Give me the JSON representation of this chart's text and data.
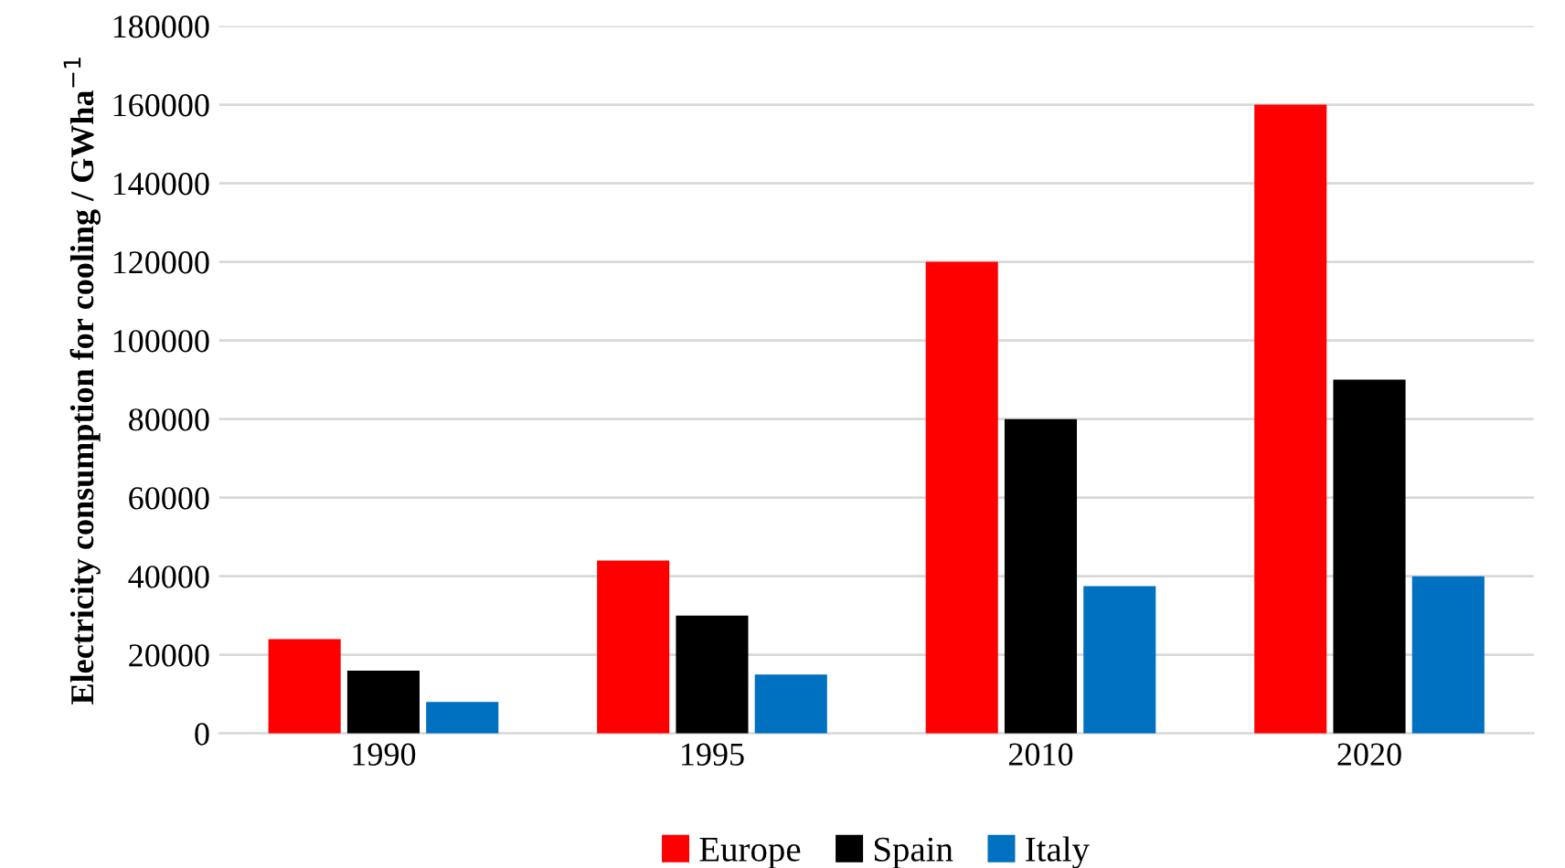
{
  "chart_data": {
    "type": "bar",
    "ylabel": "Electricity consumption for cooling / GWha$^{−1}$",
    "categories": [
      "1990",
      "1995",
      "2010",
      "2020"
    ],
    "series": [
      {
        "name": "Europe",
        "color": "#ff0000",
        "values": [
          24000,
          44000,
          120000,
          160000
        ]
      },
      {
        "name": "Spain",
        "color": "#000000",
        "values": [
          16000,
          30000,
          80000,
          90000
        ]
      },
      {
        "name": "Italy",
        "color": "#0070c0",
        "values": [
          8000,
          15000,
          37500,
          40000
        ]
      }
    ],
    "ylim": [
      0,
      180000
    ],
    "yticks": [
      0,
      20000,
      40000,
      60000,
      80000,
      100000,
      120000,
      140000,
      160000,
      180000
    ],
    "grid": "y",
    "legend": "bottom"
  }
}
